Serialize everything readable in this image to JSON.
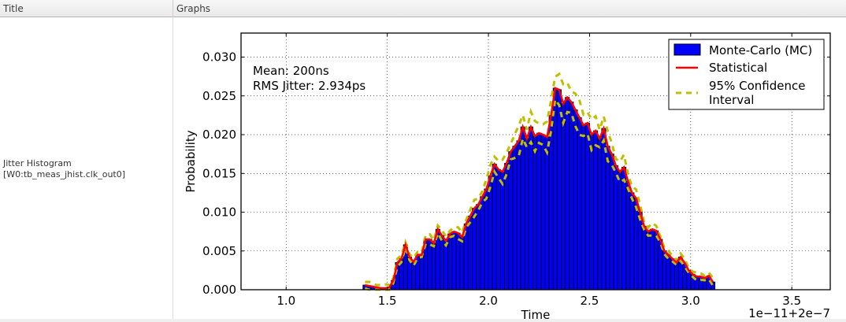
{
  "table": {
    "columns": [
      "Title",
      "Graphs"
    ],
    "rows": [
      {
        "title_line1": "Jitter Histogram",
        "title_line2": "[W0:tb_meas_jhist.clk_out0]"
      }
    ]
  },
  "chart_data": {
    "type": "bar",
    "title": "",
    "xlabel": "Time",
    "ylabel": "Probability",
    "x_offset_label": "1e−11+2e−7",
    "xlim": [
      0.777,
      3.69
    ],
    "ylim": [
      0.0,
      0.0331
    ],
    "xticks": [
      1.0,
      1.5,
      2.0,
      2.5,
      3.0,
      3.5
    ],
    "xtick_labels": [
      "1.0",
      "1.5",
      "2.0",
      "2.5",
      "3.0",
      "3.5"
    ],
    "yticks": [
      0.0,
      0.005,
      0.01,
      0.015,
      0.02,
      0.025,
      0.03
    ],
    "ytick_labels": [
      "0.000",
      "0.005",
      "0.010",
      "0.015",
      "0.020",
      "0.025",
      "0.030"
    ],
    "grid": true,
    "legend_position": "upper right",
    "annotation": [
      "Mean: 200ns",
      "RMS Jitter: 2.934ps"
    ],
    "bin_width": 0.02,
    "x": [
      1.39,
      1.41,
      1.43,
      1.45,
      1.47,
      1.49,
      1.51,
      1.53,
      1.55,
      1.57,
      1.59,
      1.61,
      1.63,
      1.65,
      1.67,
      1.69,
      1.71,
      1.73,
      1.75,
      1.77,
      1.79,
      1.81,
      1.83,
      1.85,
      1.87,
      1.89,
      1.91,
      1.93,
      1.95,
      1.97,
      1.99,
      2.01,
      2.03,
      2.05,
      2.07,
      2.09,
      2.11,
      2.13,
      2.15,
      2.17,
      2.19,
      2.21,
      2.23,
      2.25,
      2.27,
      2.29,
      2.31,
      2.33,
      2.35,
      2.37,
      2.39,
      2.41,
      2.43,
      2.45,
      2.47,
      2.49,
      2.51,
      2.53,
      2.55,
      2.57,
      2.59,
      2.61,
      2.63,
      2.65,
      2.67,
      2.69,
      2.71,
      2.73,
      2.75,
      2.77,
      2.79,
      2.81,
      2.83,
      2.85,
      2.87,
      2.89,
      2.91,
      2.93,
      2.95,
      2.97,
      2.99,
      3.01,
      3.03,
      3.05,
      3.07,
      3.09,
      3.11
    ],
    "series": [
      {
        "name": "Monte-Carlo (MC)",
        "kind": "bar",
        "color": "#0000ff",
        "values": [
          0.0006,
          0.0005,
          0.0004,
          0.0003,
          0.0002,
          0.0002,
          0.0003,
          0.0012,
          0.0035,
          0.004,
          0.0058,
          0.0042,
          0.0036,
          0.0045,
          0.0045,
          0.0065,
          0.0065,
          0.006,
          0.0078,
          0.007,
          0.0063,
          0.0072,
          0.0075,
          0.0073,
          0.0068,
          0.0085,
          0.0095,
          0.0105,
          0.011,
          0.012,
          0.013,
          0.0147,
          0.0162,
          0.0155,
          0.0152,
          0.0163,
          0.0178,
          0.0185,
          0.0192,
          0.021,
          0.0195,
          0.021,
          0.0198,
          0.0202,
          0.02,
          0.0197,
          0.0225,
          0.026,
          0.0258,
          0.024,
          0.0248,
          0.0242,
          0.0232,
          0.0222,
          0.0212,
          0.0215,
          0.02,
          0.0205,
          0.0195,
          0.0208,
          0.0185,
          0.0175,
          0.016,
          0.0152,
          0.0158,
          0.014,
          0.0125,
          0.0118,
          0.01,
          0.0082,
          0.0075,
          0.0078,
          0.0076,
          0.0065,
          0.005,
          0.0045,
          0.004,
          0.0035,
          0.0042,
          0.0035,
          0.0025,
          0.002,
          0.0017,
          0.0017,
          0.0015,
          0.0018,
          0.001
        ]
      },
      {
        "name": "Statistical",
        "kind": "line",
        "color": "#ff0000",
        "style": "solid",
        "note": "traces bar tops"
      },
      {
        "name": "95% Confidence Interval",
        "kind": "line",
        "color": "#bfbf00",
        "style": "dashed",
        "note": "upper/lower bands around bar tops, roughly ±10-15%"
      }
    ]
  },
  "legend": {
    "items": [
      {
        "label": "Monte-Carlo (MC)",
        "icon": "blue-patch",
        "color": "#0000ff"
      },
      {
        "label": "Statistical",
        "icon": "red-line",
        "color": "#ff0000"
      },
      {
        "label_line1": "95% Confidence",
        "label_line2": "Interval",
        "icon": "yellow-dashed-line",
        "color": "#bfbf00"
      }
    ]
  },
  "colors": {
    "bar_fill": "#0000ff",
    "bar_edge": "#000000",
    "statistical": "#ff0000",
    "confidence": "#bfbf00"
  }
}
